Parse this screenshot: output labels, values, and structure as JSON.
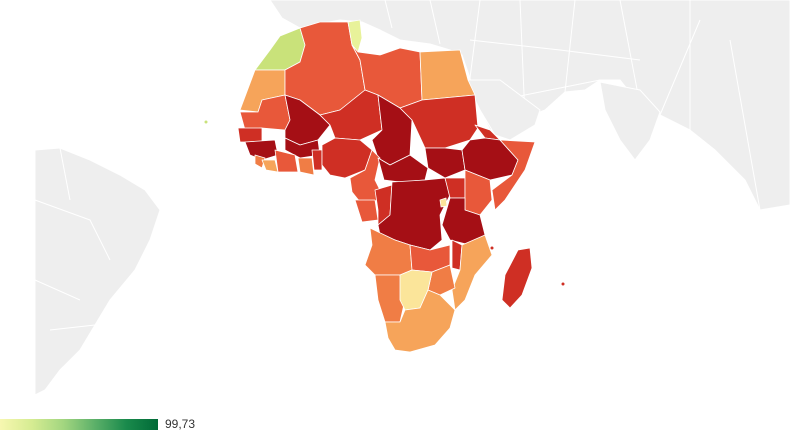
{
  "colors": {
    "background": "#ffffff",
    "other_land": "#eeeeee",
    "borders": "#ffffff",
    "dark_red": "#a50f15",
    "red": "#cf2f24",
    "red_orange": "#e8583a",
    "orange": "#f07d45",
    "light_orange": "#f6a45a",
    "pale_yellow": "#fbe59a",
    "yellow_green": "#c9e27a",
    "green": "#9fd27a"
  },
  "legend": {
    "max_label": "99,73",
    "gradient": [
      "#f7f7b0",
      "#d6ec92",
      "#a3d680",
      "#5cb069",
      "#1a8a4c",
      "#006a37"
    ]
  }
}
